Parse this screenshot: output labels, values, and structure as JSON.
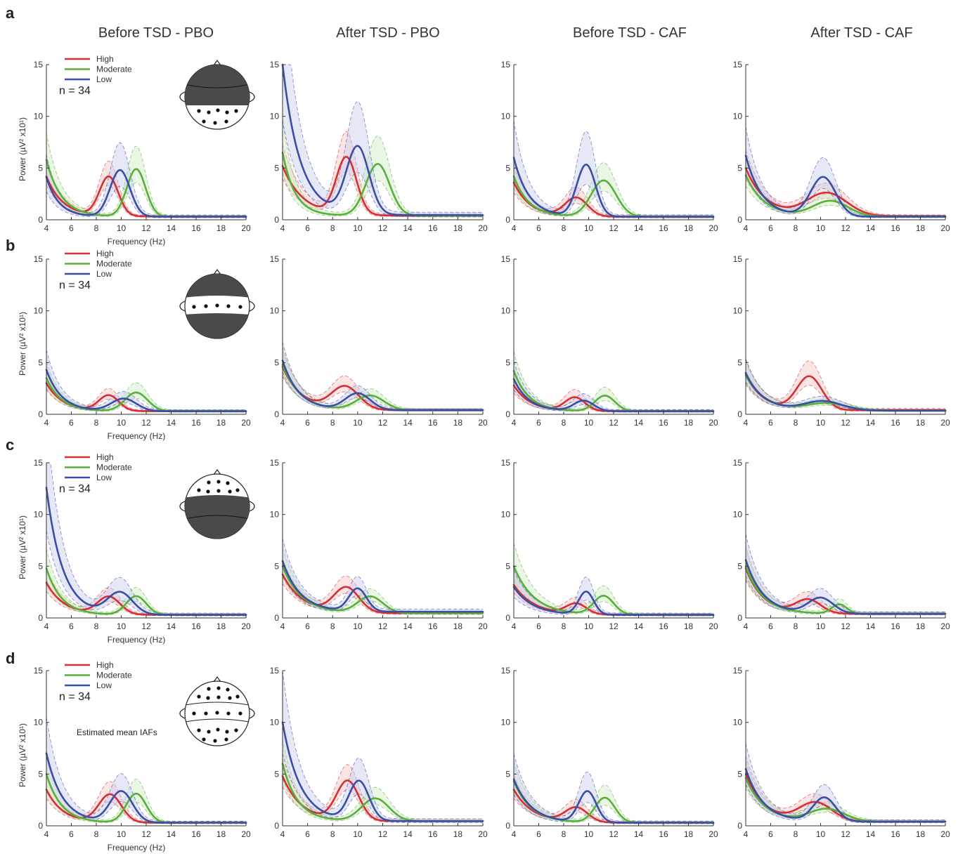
{
  "chart_data": {
    "type": "line",
    "column_titles": [
      "Before TSD - PBO",
      "After TSD - PBO",
      "Before TSD - CAF",
      "After TSD - CAF"
    ],
    "row_letters": [
      "a",
      "b",
      "c",
      "d"
    ],
    "xlabel": "Frequency (Hz)",
    "ylabel": "Power (µV² x10¹)",
    "xlim": [
      4,
      20
    ],
    "ylim": [
      0,
      15
    ],
    "xticks": [
      4,
      6,
      8,
      10,
      12,
      14,
      16,
      18,
      20
    ],
    "yticks": [
      0,
      5,
      10,
      15
    ],
    "legend": [
      "High",
      "Moderate",
      "Low"
    ],
    "n_label": "n = 34",
    "note": "Estimated mean IAFs",
    "series_colors": {
      "High": "#d62f35",
      "Moderate": "#5aaf3c",
      "Low": "#3a4ea3"
    },
    "shade_colors": {
      "High": "#f3c3c3",
      "Moderate": "#cfeac2",
      "Low": "#c8cbed"
    },
    "panels": [
      {
        "row": "a",
        "col": 0,
        "series": [
          {
            "name": "High",
            "start": 4.2,
            "tail": 0.32,
            "decay": 1.3,
            "peak": 9.0,
            "amp": 3.8,
            "width": 0.75,
            "band": 0.35
          },
          {
            "name": "Moderate",
            "start": 5.8,
            "tail": 0.3,
            "decay": 1.2,
            "peak": 11.2,
            "amp": 4.6,
            "width": 0.75,
            "band": 0.45
          },
          {
            "name": "Low",
            "start": 4.1,
            "tail": 0.3,
            "decay": 1.0,
            "peak": 9.9,
            "amp": 4.5,
            "width": 0.8,
            "band": 0.55
          }
        ]
      },
      {
        "row": "a",
        "col": 1,
        "series": [
          {
            "name": "High",
            "start": 5.2,
            "tail": 0.4,
            "decay": 1.6,
            "peak": 9.1,
            "amp": 5.5,
            "width": 0.8,
            "band": 0.4
          },
          {
            "name": "Moderate",
            "start": 6.5,
            "tail": 0.4,
            "decay": 1.0,
            "peak": 11.6,
            "amp": 5.0,
            "width": 0.95,
            "band": 0.5
          },
          {
            "name": "Low",
            "start": 15.0,
            "tail": 0.45,
            "decay": 1.4,
            "peak": 10.0,
            "amp": 6.5,
            "width": 0.9,
            "band": 0.6
          }
        ]
      },
      {
        "row": "a",
        "col": 2,
        "series": [
          {
            "name": "High",
            "start": 3.6,
            "tail": 0.3,
            "decay": 1.3,
            "peak": 9.0,
            "amp": 1.8,
            "width": 0.9,
            "band": 0.45
          },
          {
            "name": "Moderate",
            "start": 4.2,
            "tail": 0.3,
            "decay": 1.2,
            "peak": 11.2,
            "amp": 3.5,
            "width": 1.0,
            "band": 0.45
          },
          {
            "name": "Low",
            "start": 6.0,
            "tail": 0.3,
            "decay": 1.2,
            "peak": 9.8,
            "amp": 5.0,
            "width": 0.75,
            "band": 0.6
          }
        ]
      },
      {
        "row": "a",
        "col": 3,
        "series": [
          {
            "name": "High",
            "start": 5.0,
            "tail": 0.35,
            "decay": 1.6,
            "peak": 10.5,
            "amp": 2.2,
            "width": 1.6,
            "band": 0.35
          },
          {
            "name": "Moderate",
            "start": 4.3,
            "tail": 0.3,
            "decay": 1.5,
            "peak": 10.8,
            "amp": 1.5,
            "width": 1.4,
            "band": 0.4
          },
          {
            "name": "Low",
            "start": 6.2,
            "tail": 0.3,
            "decay": 1.3,
            "peak": 10.2,
            "amp": 3.8,
            "width": 1.0,
            "band": 0.45
          }
        ]
      },
      {
        "row": "b",
        "col": 0,
        "series": [
          {
            "name": "High",
            "start": 3.0,
            "tail": 0.3,
            "decay": 1.3,
            "peak": 9.0,
            "amp": 1.5,
            "width": 0.8,
            "band": 0.35
          },
          {
            "name": "Moderate",
            "start": 3.5,
            "tail": 0.3,
            "decay": 1.2,
            "peak": 11.2,
            "amp": 1.8,
            "width": 0.9,
            "band": 0.45
          },
          {
            "name": "Low",
            "start": 4.3,
            "tail": 0.3,
            "decay": 1.2,
            "peak": 10.2,
            "amp": 1.2,
            "width": 1.0,
            "band": 0.45
          }
        ]
      },
      {
        "row": "b",
        "col": 1,
        "series": [
          {
            "name": "High",
            "start": 4.6,
            "tail": 0.4,
            "decay": 1.5,
            "peak": 9.0,
            "amp": 2.2,
            "width": 1.1,
            "band": 0.35
          },
          {
            "name": "Moderate",
            "start": 4.8,
            "tail": 0.4,
            "decay": 1.4,
            "peak": 11.0,
            "amp": 1.4,
            "width": 1.1,
            "band": 0.35
          },
          {
            "name": "Low",
            "start": 5.2,
            "tail": 0.4,
            "decay": 1.3,
            "peak": 10.0,
            "amp": 1.6,
            "width": 1.0,
            "band": 0.35
          }
        ]
      },
      {
        "row": "b",
        "col": 2,
        "series": [
          {
            "name": "High",
            "start": 2.8,
            "tail": 0.3,
            "decay": 1.3,
            "peak": 8.9,
            "amp": 1.3,
            "width": 0.8,
            "band": 0.45
          },
          {
            "name": "Moderate",
            "start": 4.2,
            "tail": 0.3,
            "decay": 1.2,
            "peak": 11.3,
            "amp": 1.5,
            "width": 0.8,
            "band": 0.45
          },
          {
            "name": "Low",
            "start": 3.4,
            "tail": 0.3,
            "decay": 1.2,
            "peak": 9.6,
            "amp": 1.0,
            "width": 0.8,
            "band": 0.5
          }
        ]
      },
      {
        "row": "b",
        "col": 3,
        "series": [
          {
            "name": "High",
            "start": 3.8,
            "tail": 0.4,
            "decay": 1.4,
            "peak": 9.1,
            "amp": 3.2,
            "width": 1.0,
            "band": 0.4
          },
          {
            "name": "Moderate",
            "start": 3.8,
            "tail": 0.35,
            "decay": 1.5,
            "peak": 10.5,
            "amp": 0.7,
            "width": 1.6,
            "band": 0.35
          },
          {
            "name": "Low",
            "start": 4.0,
            "tail": 0.35,
            "decay": 1.4,
            "peak": 10.2,
            "amp": 0.9,
            "width": 1.5,
            "band": 0.35
          }
        ]
      },
      {
        "row": "c",
        "col": 0,
        "series": [
          {
            "name": "High",
            "start": 3.4,
            "tail": 0.3,
            "decay": 1.4,
            "peak": 9.0,
            "amp": 1.7,
            "width": 0.9,
            "band": 0.4
          },
          {
            "name": "Moderate",
            "start": 4.8,
            "tail": 0.3,
            "decay": 1.2,
            "peak": 11.2,
            "amp": 1.8,
            "width": 0.8,
            "band": 0.4
          },
          {
            "name": "Low",
            "start": 12.6,
            "tail": 0.3,
            "decay": 1.3,
            "peak": 9.9,
            "amp": 2.1,
            "width": 1.0,
            "band": 0.55
          }
        ]
      },
      {
        "row": "c",
        "col": 1,
        "series": [
          {
            "name": "High",
            "start": 4.2,
            "tail": 0.45,
            "decay": 1.6,
            "peak": 9.1,
            "amp": 2.4,
            "width": 1.0,
            "band": 0.35
          },
          {
            "name": "Moderate",
            "start": 5.0,
            "tail": 0.45,
            "decay": 1.5,
            "peak": 11.0,
            "amp": 1.6,
            "width": 1.0,
            "band": 0.35
          },
          {
            "name": "Low",
            "start": 5.5,
            "tail": 0.6,
            "decay": 1.4,
            "peak": 10.0,
            "amp": 2.2,
            "width": 0.7,
            "band": 0.4
          }
        ]
      },
      {
        "row": "c",
        "col": 2,
        "series": [
          {
            "name": "High",
            "start": 3.2,
            "tail": 0.3,
            "decay": 1.6,
            "peak": 9.0,
            "amp": 1.0,
            "width": 0.8,
            "band": 0.4
          },
          {
            "name": "Moderate",
            "start": 5.0,
            "tail": 0.3,
            "decay": 1.6,
            "peak": 11.2,
            "amp": 1.8,
            "width": 0.8,
            "band": 0.45
          },
          {
            "name": "Low",
            "start": 3.0,
            "tail": 0.3,
            "decay": 1.5,
            "peak": 9.8,
            "amp": 2.2,
            "width": 0.6,
            "band": 0.55
          }
        ]
      },
      {
        "row": "c",
        "col": 3,
        "series": [
          {
            "name": "High",
            "start": 4.8,
            "tail": 0.4,
            "decay": 1.4,
            "peak": 9.0,
            "amp": 1.3,
            "width": 1.0,
            "band": 0.4
          },
          {
            "name": "Moderate",
            "start": 5.0,
            "tail": 0.4,
            "decay": 1.4,
            "peak": 11.5,
            "amp": 0.9,
            "width": 0.6,
            "band": 0.4
          },
          {
            "name": "Low",
            "start": 5.6,
            "tail": 0.4,
            "decay": 1.4,
            "peak": 10.0,
            "amp": 1.5,
            "width": 1.0,
            "band": 0.45
          }
        ]
      },
      {
        "row": "d",
        "col": 0,
        "series": [
          {
            "name": "High",
            "start": 3.5,
            "tail": 0.3,
            "decay": 1.3,
            "peak": 9.1,
            "amp": 2.7,
            "width": 0.9,
            "band": 0.4
          },
          {
            "name": "Moderate",
            "start": 5.0,
            "tail": 0.3,
            "decay": 1.2,
            "peak": 11.2,
            "amp": 2.8,
            "width": 0.8,
            "band": 0.45
          },
          {
            "name": "Low",
            "start": 7.0,
            "tail": 0.3,
            "decay": 1.3,
            "peak": 10.0,
            "amp": 3.0,
            "width": 0.9,
            "band": 0.5
          }
        ]
      },
      {
        "row": "d",
        "col": 1,
        "series": [
          {
            "name": "High",
            "start": 4.8,
            "tail": 0.45,
            "decay": 1.5,
            "peak": 9.2,
            "amp": 3.8,
            "width": 0.9,
            "band": 0.35
          },
          {
            "name": "Moderate",
            "start": 6.0,
            "tail": 0.45,
            "decay": 1.2,
            "peak": 11.4,
            "amp": 2.2,
            "width": 1.1,
            "band": 0.4
          },
          {
            "name": "Low",
            "start": 10.0,
            "tail": 0.45,
            "decay": 1.4,
            "peak": 10.1,
            "amp": 3.8,
            "width": 0.8,
            "band": 0.5
          }
        ]
      },
      {
        "row": "d",
        "col": 2,
        "series": [
          {
            "name": "High",
            "start": 3.5,
            "tail": 0.3,
            "decay": 1.5,
            "peak": 9.0,
            "amp": 1.4,
            "width": 0.9,
            "band": 0.4
          },
          {
            "name": "Moderate",
            "start": 4.3,
            "tail": 0.3,
            "decay": 1.4,
            "peak": 11.3,
            "amp": 2.4,
            "width": 0.8,
            "band": 0.45
          },
          {
            "name": "Low",
            "start": 4.5,
            "tail": 0.3,
            "decay": 1.4,
            "peak": 9.9,
            "amp": 3.0,
            "width": 0.7,
            "band": 0.55
          }
        ]
      },
      {
        "row": "d",
        "col": 3,
        "series": [
          {
            "name": "High",
            "start": 5.0,
            "tail": 0.4,
            "decay": 1.5,
            "peak": 9.6,
            "amp": 1.8,
            "width": 1.3,
            "band": 0.35
          },
          {
            "name": "Moderate",
            "start": 4.6,
            "tail": 0.4,
            "decay": 1.5,
            "peak": 10.5,
            "amp": 1.2,
            "width": 1.4,
            "band": 0.35
          },
          {
            "name": "Low",
            "start": 5.5,
            "tail": 0.4,
            "decay": 1.4,
            "peak": 10.3,
            "amp": 2.3,
            "width": 0.9,
            "band": 0.45
          }
        ]
      }
    ]
  }
}
